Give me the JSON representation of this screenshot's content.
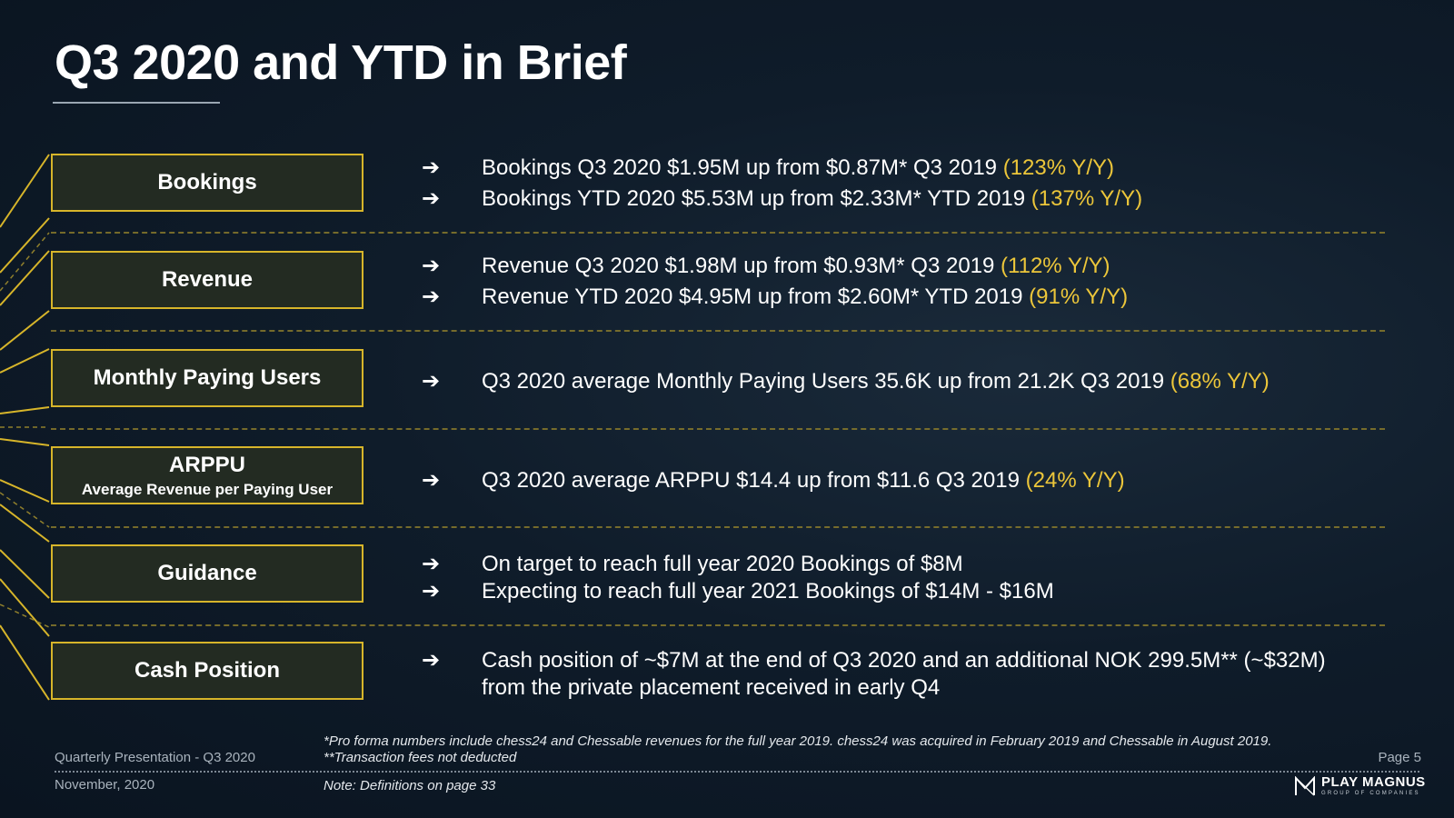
{
  "title": "Q3 2020 and YTD in Brief",
  "accent_color": "#ecc63a",
  "arrow_glyph": "➔",
  "rows": [
    {
      "label": "Bookings",
      "lines": [
        {
          "text": "Bookings Q3 2020 $1.95M up from $0.87M* Q3 2019 ",
          "highlight": "(123% Y/Y)"
        },
        {
          "text": "Bookings YTD 2020 $5.53M up from $2.33M* YTD 2019 ",
          "highlight": "(137% Y/Y)"
        }
      ]
    },
    {
      "label": "Revenue",
      "lines": [
        {
          "text": "Revenue Q3 2020 $1.98M up from $0.93M* Q3 2019 ",
          "highlight": "(112% Y/Y)"
        },
        {
          "text": "Revenue YTD 2020 $4.95M up from $2.60M* YTD 2019 ",
          "highlight": "(91% Y/Y)"
        }
      ]
    },
    {
      "label": "Monthly Paying Users",
      "lines": [
        {
          "text": "Q3 2020 average Monthly Paying Users 35.6K up from 21.2K Q3 2019 ",
          "highlight": "(68% Y/Y)"
        }
      ]
    },
    {
      "label": "ARPPU",
      "sublabel": "Average Revenue per Paying User",
      "lines": [
        {
          "text": "Q3 2020 average ARPPU $14.4 up from $11.6 Q3 2019 ",
          "highlight": "(24% Y/Y)"
        }
      ]
    },
    {
      "label": "Guidance",
      "lines": [
        {
          "text": "On target to reach full year 2020 Bookings of $8M"
        },
        {
          "text": "Expecting to reach full year 2021 Bookings of $14M - $16M"
        }
      ]
    },
    {
      "label": "Cash Position",
      "lines": [
        {
          "text": "Cash position of ~$7M at the end of Q3 2020 and an additional NOK 299.5M** (~$32M)"
        },
        {
          "text": "from the private placement received in early Q4"
        }
      ]
    }
  ],
  "footer": {
    "presentation": "Quarterly Presentation - Q3 2020",
    "date": "November, 2020",
    "footnote1": "*Pro forma numbers include chess24 and Chessable revenues for the full year 2019. chess24 was acquired in February 2019 and Chessable in August 2019.",
    "footnote2": "**Transaction fees not deducted",
    "note": "Note: Definitions on page 33",
    "page": "Page 5"
  },
  "logo": {
    "mark": "M",
    "name": "PLAY MAGNUS",
    "subtitle": "GROUP OF COMPANIES"
  }
}
